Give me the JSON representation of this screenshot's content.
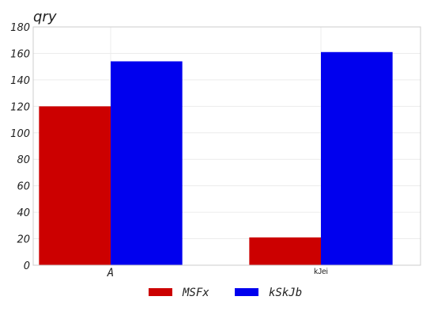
{
  "chart_data": {
    "type": "bar",
    "title": "qry",
    "xlabel": "",
    "ylabel": "",
    "categories": [
      "A",
      "kJei"
    ],
    "series": [
      {
        "name": "MSFx",
        "values": [
          120,
          21
        ],
        "color": "#cc0000"
      },
      {
        "name": "kSkJb",
        "values": [
          154,
          161
        ],
        "color": "#0000ee"
      }
    ],
    "ylim": [
      0,
      180
    ],
    "yticks": [
      0,
      20,
      40,
      60,
      80,
      100,
      120,
      140,
      160,
      180
    ],
    "grid": true,
    "legend_position": "bottom-center"
  }
}
